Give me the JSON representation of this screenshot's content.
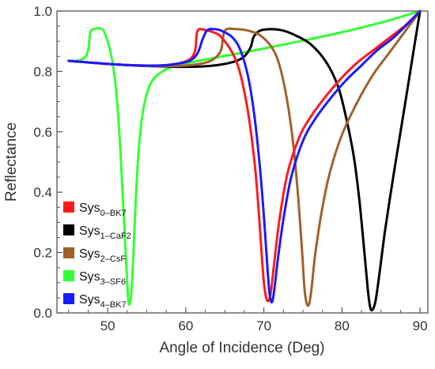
{
  "chart_data": {
    "type": "line",
    "title": "",
    "xlabel": "Angle of Incidence (Deg)",
    "ylabel": "Reflectance",
    "xlim": [
      43.5,
      91
    ],
    "ylim": [
      0.0,
      1.0
    ],
    "x_ticks": [
      50,
      60,
      70,
      80,
      90
    ],
    "x_tick_labels": [
      "50",
      "60",
      "70",
      "80",
      "90"
    ],
    "y_ticks": [
      0.0,
      0.2,
      0.4,
      0.6,
      0.8,
      1.0
    ],
    "y_tick_labels": [
      "0.0",
      "0.2",
      "0.4",
      "0.6",
      "0.8",
      "1.0"
    ],
    "grid": false,
    "legend_position": "bottom-left",
    "series": [
      {
        "name": "Sys0-BK7",
        "label_main": "Sys",
        "label_sub": "0–BK7",
        "color": "#ff1a1a",
        "points": [
          [
            45,
            0.835
          ],
          [
            50,
            0.825
          ],
          [
            54,
            0.82
          ],
          [
            57,
            0.82
          ],
          [
            59,
            0.826
          ],
          [
            60.5,
            0.84
          ],
          [
            61.2,
            0.87
          ],
          [
            61.5,
            0.935
          ],
          [
            62.5,
            0.937
          ],
          [
            63.5,
            0.93
          ],
          [
            64.5,
            0.915
          ],
          [
            66,
            0.86
          ],
          [
            67,
            0.79
          ],
          [
            68,
            0.66
          ],
          [
            68.8,
            0.5
          ],
          [
            69.3,
            0.35
          ],
          [
            69.7,
            0.2
          ],
          [
            70,
            0.1
          ],
          [
            70.3,
            0.05
          ],
          [
            70.6,
            0.04
          ],
          [
            70.9,
            0.07
          ],
          [
            71.3,
            0.16
          ],
          [
            72,
            0.31
          ],
          [
            73,
            0.46
          ],
          [
            74.5,
            0.58
          ],
          [
            76,
            0.65
          ],
          [
            78,
            0.72
          ],
          [
            80,
            0.78
          ],
          [
            82,
            0.83
          ],
          [
            84,
            0.87
          ],
          [
            86,
            0.91
          ],
          [
            88,
            0.95
          ],
          [
            90,
            1.0
          ]
        ]
      },
      {
        "name": "Sys1-CaF2",
        "label_main": "Sys",
        "label_sub": "1–CaF2",
        "color": "#000000",
        "points": [
          [
            45,
            0.835
          ],
          [
            50,
            0.825
          ],
          [
            55,
            0.818
          ],
          [
            60,
            0.815
          ],
          [
            63,
            0.818
          ],
          [
            65,
            0.825
          ],
          [
            66.5,
            0.835
          ],
          [
            67.5,
            0.85
          ],
          [
            68.3,
            0.88
          ],
          [
            68.7,
            0.915
          ],
          [
            69.5,
            0.935
          ],
          [
            71,
            0.94
          ],
          [
            72.5,
            0.935
          ],
          [
            74,
            0.92
          ],
          [
            76,
            0.89
          ],
          [
            78,
            0.83
          ],
          [
            79.5,
            0.75
          ],
          [
            80.5,
            0.65
          ],
          [
            81.5,
            0.52
          ],
          [
            82.2,
            0.38
          ],
          [
            82.8,
            0.22
          ],
          [
            83.3,
            0.08
          ],
          [
            83.6,
            0.02
          ],
          [
            83.9,
            0.01
          ],
          [
            84.3,
            0.04
          ],
          [
            84.8,
            0.13
          ],
          [
            85.5,
            0.27
          ],
          [
            86.5,
            0.44
          ],
          [
            87.5,
            0.6
          ],
          [
            88.5,
            0.76
          ],
          [
            89.3,
            0.89
          ],
          [
            90,
            1.0
          ]
        ]
      },
      {
        "name": "Sys2-CsF",
        "label_main": "Sys",
        "label_sub": "2–CsF",
        "color": "#a0602a",
        "points": [
          [
            45,
            0.835
          ],
          [
            50,
            0.825
          ],
          [
            55,
            0.818
          ],
          [
            59,
            0.818
          ],
          [
            62,
            0.826
          ],
          [
            63.5,
            0.84
          ],
          [
            64.5,
            0.87
          ],
          [
            65,
            0.935
          ],
          [
            66.5,
            0.94
          ],
          [
            68,
            0.935
          ],
          [
            69.5,
            0.92
          ],
          [
            71,
            0.88
          ],
          [
            72,
            0.82
          ],
          [
            73,
            0.7
          ],
          [
            73.8,
            0.55
          ],
          [
            74.4,
            0.38
          ],
          [
            74.9,
            0.2
          ],
          [
            75.2,
            0.08
          ],
          [
            75.5,
            0.03
          ],
          [
            75.8,
            0.03
          ],
          [
            76.1,
            0.08
          ],
          [
            76.6,
            0.2
          ],
          [
            77.5,
            0.35
          ],
          [
            78.5,
            0.47
          ],
          [
            80,
            0.59
          ],
          [
            82,
            0.7
          ],
          [
            84,
            0.79
          ],
          [
            86,
            0.86
          ],
          [
            88,
            0.93
          ],
          [
            90,
            1.0
          ]
        ]
      },
      {
        "name": "Sys3-SF6",
        "label_main": "Sys",
        "label_sub": "3–SF6",
        "color": "#33ff33",
        "points": [
          [
            45,
            0.835
          ],
          [
            46,
            0.835
          ],
          [
            47,
            0.845
          ],
          [
            47.5,
            0.87
          ],
          [
            47.8,
            0.93
          ],
          [
            48.5,
            0.942
          ],
          [
            49.3,
            0.94
          ],
          [
            49.8,
            0.915
          ],
          [
            50.3,
            0.87
          ],
          [
            50.8,
            0.8
          ],
          [
            51.2,
            0.7
          ],
          [
            51.6,
            0.55
          ],
          [
            51.9,
            0.4
          ],
          [
            52.2,
            0.25
          ],
          [
            52.5,
            0.1
          ],
          [
            52.7,
            0.03
          ],
          [
            53,
            0.06
          ],
          [
            53.3,
            0.2
          ],
          [
            53.6,
            0.38
          ],
          [
            54,
            0.55
          ],
          [
            54.6,
            0.68
          ],
          [
            55.5,
            0.76
          ],
          [
            57,
            0.8
          ],
          [
            59,
            0.82
          ],
          [
            62,
            0.837
          ],
          [
            66,
            0.856
          ],
          [
            70,
            0.876
          ],
          [
            75,
            0.902
          ],
          [
            80,
            0.93
          ],
          [
            85,
            0.962
          ],
          [
            90,
            1.0
          ]
        ]
      },
      {
        "name": "Sys4-BK7",
        "label_main": "Sys",
        "label_sub": "4–BK7",
        "color": "#1a1aff",
        "points": [
          [
            45,
            0.835
          ],
          [
            50,
            0.825
          ],
          [
            54,
            0.82
          ],
          [
            57,
            0.82
          ],
          [
            59,
            0.826
          ],
          [
            60.5,
            0.835
          ],
          [
            61.5,
            0.86
          ],
          [
            62.2,
            0.91
          ],
          [
            62.8,
            0.937
          ],
          [
            63.8,
            0.94
          ],
          [
            64.8,
            0.932
          ],
          [
            66,
            0.912
          ],
          [
            67,
            0.87
          ],
          [
            68,
            0.78
          ],
          [
            68.8,
            0.65
          ],
          [
            69.5,
            0.48
          ],
          [
            70,
            0.32
          ],
          [
            70.4,
            0.17
          ],
          [
            70.7,
            0.07
          ],
          [
            71,
            0.035
          ],
          [
            71.3,
            0.07
          ],
          [
            71.8,
            0.18
          ],
          [
            72.5,
            0.31
          ],
          [
            73.5,
            0.45
          ],
          [
            75,
            0.57
          ],
          [
            76.5,
            0.64
          ],
          [
            78.5,
            0.71
          ],
          [
            80.5,
            0.77
          ],
          [
            82.5,
            0.82
          ],
          [
            84.5,
            0.87
          ],
          [
            86.5,
            0.91
          ],
          [
            88.5,
            0.96
          ],
          [
            90,
            1.0
          ]
        ]
      }
    ]
  }
}
